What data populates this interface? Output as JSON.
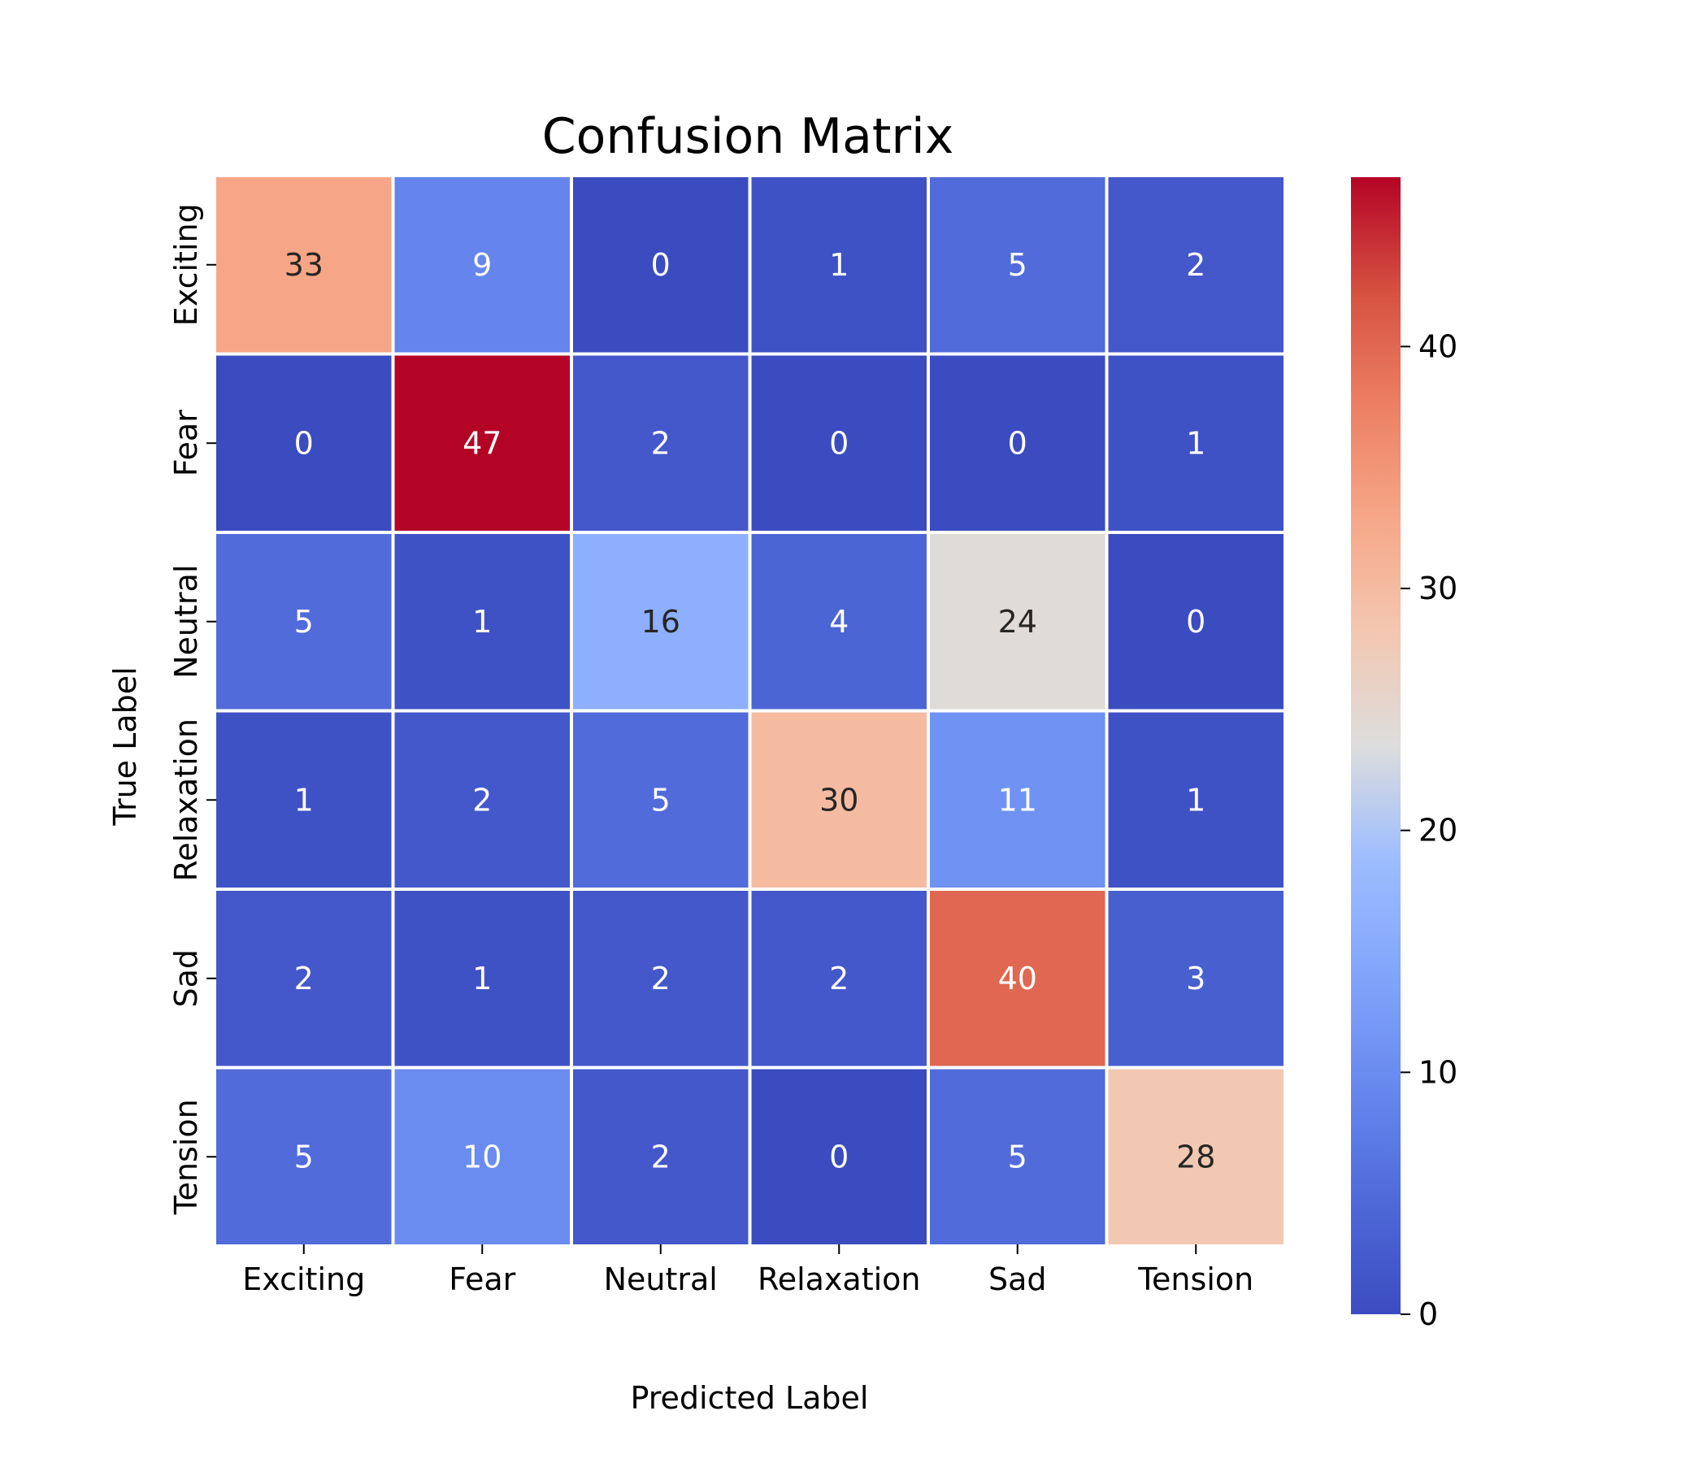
{
  "chart_data": {
    "type": "heatmap",
    "title": "Confusion Matrix",
    "xlabel": "Predicted Label",
    "ylabel": "True Label",
    "x_categories": [
      "Exciting",
      "Fear",
      "Neutral",
      "Relaxation",
      "Sad",
      "Tension"
    ],
    "y_categories": [
      "Exciting",
      "Fear",
      "Neutral",
      "Relaxation",
      "Sad",
      "Tension"
    ],
    "values": [
      [
        33,
        9,
        0,
        1,
        5,
        2
      ],
      [
        0,
        47,
        2,
        0,
        0,
        1
      ],
      [
        5,
        1,
        16,
        4,
        24,
        0
      ],
      [
        1,
        2,
        5,
        30,
        11,
        1
      ],
      [
        2,
        1,
        2,
        2,
        40,
        3
      ],
      [
        5,
        10,
        2,
        0,
        5,
        28
      ]
    ],
    "colormap": "coolwarm",
    "colorbar": {
      "min": 0,
      "max": 47,
      "ticks": [
        0,
        10,
        20,
        30,
        40
      ]
    },
    "annotations": true,
    "grid": false
  }
}
